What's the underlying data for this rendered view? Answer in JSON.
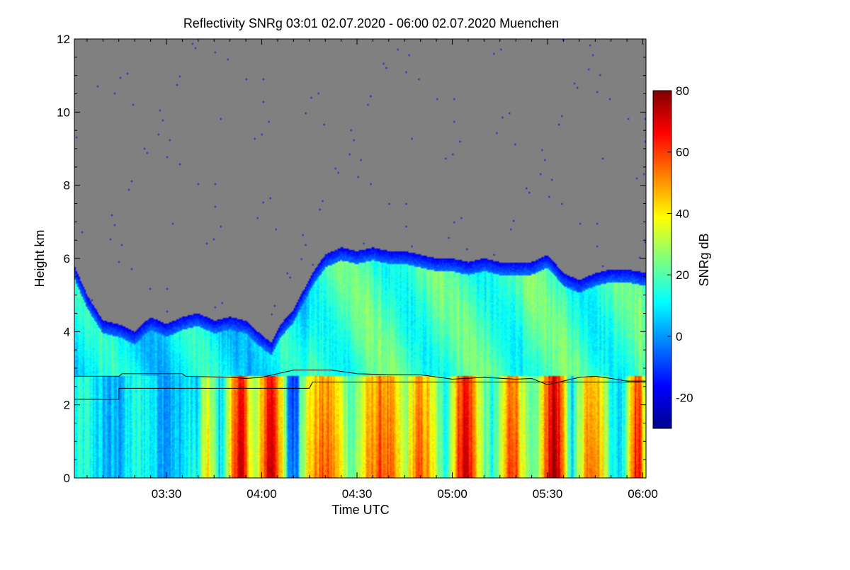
{
  "chart_data": {
    "type": "heatmap",
    "title": "Reflectivity SNRg   03:01 02.07.2020 - 06:00 02.07.2020 Muenchen",
    "xlabel": "Time UTC",
    "ylabel": "Height km",
    "x_unit": "minutes after 00:00 UTC",
    "xlim": [
      181,
      361
    ],
    "ylim": [
      0,
      12
    ],
    "x_ticks": [
      {
        "value": 210,
        "label": "03:30"
      },
      {
        "value": 240,
        "label": "04:00"
      },
      {
        "value": 270,
        "label": "04:30"
      },
      {
        "value": 300,
        "label": "05:00"
      },
      {
        "value": 330,
        "label": "05:30"
      },
      {
        "value": 360,
        "label": "06:00"
      }
    ],
    "y_ticks": [
      {
        "value": 0,
        "label": "0"
      },
      {
        "value": 2,
        "label": "2"
      },
      {
        "value": 4,
        "label": "4"
      },
      {
        "value": 6,
        "label": "6"
      },
      {
        "value": 8,
        "label": "8"
      },
      {
        "value": 10,
        "label": "10"
      },
      {
        "value": 12,
        "label": "12"
      }
    ],
    "colorbar": {
      "label": "SNRg dB",
      "range": [
        -30,
        80
      ],
      "ticks": [
        {
          "value": -20,
          "label": "-20"
        },
        {
          "value": 0,
          "label": "0"
        },
        {
          "value": 20,
          "label": "20"
        },
        {
          "value": 40,
          "label": "40"
        },
        {
          "value": 60,
          "label": "60"
        },
        {
          "value": 80,
          "label": "80"
        }
      ],
      "colormap": [
        "#00008f",
        "#0000ff",
        "#00ffff",
        "#ffff00",
        "#ff0000",
        "#800000"
      ]
    },
    "background_color": "#808080",
    "echo_top_km": [
      [
        181,
        5.8
      ],
      [
        185,
        5.0
      ],
      [
        190,
        4.3
      ],
      [
        195,
        4.2
      ],
      [
        200,
        4.0
      ],
      [
        205,
        4.4
      ],
      [
        210,
        4.2
      ],
      [
        215,
        4.4
      ],
      [
        220,
        4.5
      ],
      [
        225,
        4.3
      ],
      [
        230,
        4.4
      ],
      [
        235,
        4.3
      ],
      [
        240,
        3.9
      ],
      [
        243,
        3.7
      ],
      [
        246,
        4.2
      ],
      [
        248,
        4.4
      ],
      [
        250,
        4.6
      ],
      [
        253,
        5.1
      ],
      [
        256,
        5.6
      ],
      [
        260,
        6.1
      ],
      [
        265,
        6.3
      ],
      [
        270,
        6.2
      ],
      [
        275,
        6.3
      ],
      [
        280,
        6.2
      ],
      [
        285,
        6.2
      ],
      [
        290,
        6.1
      ],
      [
        295,
        6.0
      ],
      [
        300,
        6.0
      ],
      [
        305,
        5.9
      ],
      [
        310,
        6.0
      ],
      [
        315,
        5.9
      ],
      [
        320,
        5.9
      ],
      [
        325,
        5.9
      ],
      [
        330,
        6.1
      ],
      [
        335,
        5.6
      ],
      [
        340,
        5.4
      ],
      [
        345,
        5.6
      ],
      [
        350,
        5.7
      ],
      [
        355,
        5.7
      ],
      [
        361,
        5.6
      ]
    ],
    "line_upper_km": [
      [
        181,
        2.78
      ],
      [
        195,
        2.78
      ],
      [
        196,
        2.85
      ],
      [
        215,
        2.85
      ],
      [
        216,
        2.78
      ],
      [
        230,
        2.75
      ],
      [
        235,
        2.72
      ],
      [
        240,
        2.75
      ],
      [
        245,
        2.85
      ],
      [
        250,
        2.95
      ],
      [
        255,
        2.95
      ],
      [
        262,
        2.95
      ],
      [
        270,
        2.85
      ],
      [
        280,
        2.82
      ],
      [
        290,
        2.82
      ],
      [
        300,
        2.7
      ],
      [
        310,
        2.75
      ],
      [
        320,
        2.7
      ],
      [
        325,
        2.72
      ],
      [
        330,
        2.55
      ],
      [
        335,
        2.65
      ],
      [
        340,
        2.75
      ],
      [
        345,
        2.78
      ],
      [
        350,
        2.72
      ],
      [
        355,
        2.65
      ],
      [
        361,
        2.65
      ]
    ],
    "line_lower_km": [
      [
        181,
        2.15
      ],
      [
        195,
        2.15
      ],
      [
        195,
        2.45
      ],
      [
        255,
        2.45
      ],
      [
        256,
        2.62
      ],
      [
        361,
        2.62
      ]
    ],
    "convective_bands": [
      {
        "center": 219,
        "width": 3,
        "value": 5
      },
      {
        "center": 223,
        "width": 4,
        "value": 30
      },
      {
        "center": 233,
        "width": 6,
        "value": 62
      },
      {
        "center": 243,
        "width": 6,
        "value": 66
      },
      {
        "center": 250,
        "width": 3,
        "value": -10
      },
      {
        "center": 260,
        "width": 12,
        "value": 48
      },
      {
        "center": 278,
        "width": 12,
        "value": 50
      },
      {
        "center": 290,
        "width": 8,
        "value": 47
      },
      {
        "center": 304,
        "width": 7,
        "value": 64
      },
      {
        "center": 319,
        "width": 6,
        "value": 55
      },
      {
        "center": 332,
        "width": 6,
        "value": 70
      },
      {
        "center": 344,
        "width": 7,
        "value": 50
      },
      {
        "center": 358,
        "width": 5,
        "value": 57
      }
    ]
  }
}
